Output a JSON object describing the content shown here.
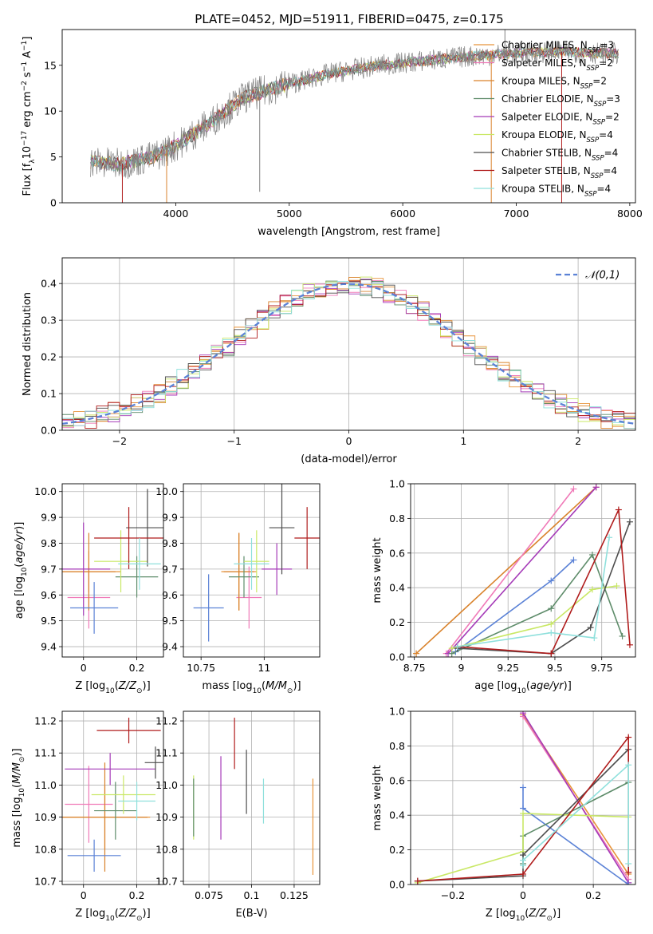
{
  "figure": {
    "title": "PLATE=0452, MJD=51911, FIBERID=0475, z=0.175"
  },
  "colors": {
    "models": [
      "#e8943a",
      "#f07ab8",
      "#d9822b",
      "#5e8c6a",
      "#a53ab8",
      "#c9e865",
      "#4d4d4d",
      "#b01c1c",
      "#8fe0dc"
    ],
    "gauss": "#5b82d6",
    "data": "#808080"
  },
  "chart_data": [
    {
      "panel": "spectrum",
      "type": "line",
      "xlabel": "wavelength [Angstrom, rest frame]",
      "ylabel": "Flux [f_λ10^-17 erg cm^-2 s^-1 A^-1]",
      "xlim": [
        3000,
        8050
      ],
      "ylim": [
        0,
        18.9
      ],
      "xticks": [
        4000,
        5000,
        6000,
        7000,
        8000
      ],
      "yticks": [
        0,
        5,
        10,
        15
      ],
      "legend": [
        {
          "base": "Chabrier MILES, N",
          "sub": "SSP",
          "tail": "=3"
        },
        {
          "base": "Salpeter MILES, N",
          "sub": "SSP",
          "tail": "=2"
        },
        {
          "base": "Kroupa MILES, N",
          "sub": "SSP",
          "tail": "=2"
        },
        {
          "base": "Chabrier ELODIE, N",
          "sub": "SSP",
          "tail": "=3"
        },
        {
          "base": "Salpeter ELODIE, N",
          "sub": "SSP",
          "tail": "=2"
        },
        {
          "base": "Kroupa ELODIE, N",
          "sub": "SSP",
          "tail": "=4"
        },
        {
          "base": "Chabrier STELIB, N",
          "sub": "SSP",
          "tail": "=4"
        },
        {
          "base": "Salpeter STELIB, N",
          "sub": "SSP",
          "tail": "=4"
        },
        {
          "base": "Kroupa STELIB, N",
          "sub": "SSP",
          "tail": "=4"
        }
      ],
      "legend_position": "upper right",
      "approx_trend": {
        "x": [
          3250,
          3500,
          3800,
          4000,
          4300,
          4600,
          5000,
          5400,
          5800,
          6200,
          6600,
          7000,
          7400,
          7800
        ],
        "y": [
          4.5,
          4.2,
          5.0,
          6.2,
          8.7,
          11.5,
          13.0,
          14.2,
          15.0,
          15.5,
          16.0,
          16.3,
          16.5,
          16.3
        ]
      },
      "spikes": [
        {
          "x": 3530,
          "y": 0
        },
        {
          "x": 3920,
          "y": 0
        },
        {
          "x": 4740,
          "y": 1.2
        },
        {
          "x": 6780,
          "y": 0
        },
        {
          "x": 7400,
          "y": 0
        },
        {
          "x": 6900,
          "y": 18.9
        }
      ]
    },
    {
      "panel": "residuals",
      "type": "step",
      "xlabel": "(data-model)/error",
      "ylabel": "Normed distribution",
      "xlim": [
        -2.5,
        2.5
      ],
      "ylim": [
        0,
        0.47
      ],
      "xticks": [
        -2,
        -1,
        0,
        1,
        2
      ],
      "yticks": [
        0.0,
        0.1,
        0.2,
        0.3,
        0.4
      ],
      "grid": true,
      "legend": "𝒩(0,1)",
      "legend_position": "upper right",
      "bin_edges": [
        -2.5,
        2.5
      ],
      "n_bins": 50,
      "histograms_approx": "nine model histograms around the Gaussian"
    },
    {
      "panel": "age_vs_Z",
      "type": "errorbar",
      "xlabel": "Z [log10(Z/Z⊙)]",
      "ylabel": "age  [log10(age/yr)]",
      "xlim": [
        -0.08,
        0.3
      ],
      "ylim": [
        9.36,
        10.03
      ],
      "xticks": [
        0.0,
        0.2
      ],
      "yticks": [
        9.4,
        9.5,
        9.6,
        9.7,
        9.8,
        9.9,
        10.0
      ],
      "points": [
        {
          "x": 0.02,
          "y": 9.69,
          "xerr": 0.12,
          "yerr": 0.08,
          "c": 0
        },
        {
          "x": 0.02,
          "y": 9.59,
          "xerr": 0.08,
          "yerr": 0.12,
          "c": 1
        },
        {
          "x": 0.02,
          "y": 9.69,
          "xerr": 0.1,
          "yerr": 0.15,
          "c": 2
        },
        {
          "x": 0.2,
          "y": 9.67,
          "xerr": 0.08,
          "yerr": 0.08,
          "c": 3
        },
        {
          "x": 0.0,
          "y": 9.7,
          "xerr": 0.1,
          "yerr": 0.18,
          "c": 4
        },
        {
          "x": 0.14,
          "y": 9.73,
          "xerr": 0.1,
          "yerr": 0.12,
          "c": 5
        },
        {
          "x": 0.24,
          "y": 9.86,
          "xerr": 0.08,
          "yerr": 0.15,
          "c": 6
        },
        {
          "x": 0.17,
          "y": 9.82,
          "xerr": 0.13,
          "yerr": 0.12,
          "c": 7
        },
        {
          "x": 0.21,
          "y": 9.72,
          "xerr": 0.08,
          "yerr": 0.1,
          "c": 8
        },
        {
          "x": 0.04,
          "y": 9.55,
          "xerr": 0.09,
          "yerr": 0.1,
          "c": "gauss"
        }
      ]
    },
    {
      "panel": "age_vs_mass",
      "type": "errorbar",
      "xlabel": "mass [log10(M/M⊙)]",
      "ylabel": "",
      "xlim": [
        10.68,
        11.22
      ],
      "ylim": [
        9.36,
        10.03
      ],
      "xticks": [
        10.75,
        11.0
      ],
      "yticks": [
        9.4,
        9.5,
        9.6,
        9.7,
        9.8,
        9.9,
        10.0
      ],
      "points": [
        {
          "x": 10.9,
          "y": 9.69,
          "xerr": 0.07,
          "yerr": 0.15,
          "c": 0
        },
        {
          "x": 10.94,
          "y": 9.59,
          "xerr": 0.05,
          "yerr": 0.12,
          "c": 1
        },
        {
          "x": 10.9,
          "y": 9.69,
          "xerr": 0.06,
          "yerr": 0.15,
          "c": 2
        },
        {
          "x": 10.92,
          "y": 9.67,
          "xerr": 0.06,
          "yerr": 0.08,
          "c": 3
        },
        {
          "x": 11.05,
          "y": 9.7,
          "xerr": 0.06,
          "yerr": 0.1,
          "c": 4
        },
        {
          "x": 10.97,
          "y": 9.73,
          "xerr": 0.05,
          "yerr": 0.12,
          "c": 5
        },
        {
          "x": 11.07,
          "y": 9.86,
          "xerr": 0.05,
          "yerr": 0.18,
          "c": 6
        },
        {
          "x": 11.17,
          "y": 9.82,
          "xerr": 0.05,
          "yerr": 0.12,
          "c": 7
        },
        {
          "x": 10.95,
          "y": 9.72,
          "xerr": 0.07,
          "yerr": 0.1,
          "c": 8
        },
        {
          "x": 10.78,
          "y": 9.55,
          "xerr": 0.06,
          "yerr": 0.13,
          "c": "gauss"
        }
      ]
    },
    {
      "panel": "weight_vs_age",
      "type": "line",
      "xlabel": "age  [log10(age/yr)]",
      "ylabel": "mass weight",
      "xlim": [
        8.73,
        9.93
      ],
      "ylim": [
        0,
        1
      ],
      "xticks": [
        8.75,
        9.0,
        9.25,
        9.5,
        9.75
      ],
      "yticks": [
        0.0,
        0.2,
        0.4,
        0.6,
        0.8,
        1.0
      ],
      "grid": true,
      "series": [
        {
          "c": 2,
          "x": [
            8.76,
            9.72
          ],
          "y": [
            0.02,
            0.98
          ]
        },
        {
          "c": 1,
          "x": [
            8.92,
            9.6
          ],
          "y": [
            0.02,
            0.97
          ]
        },
        {
          "c": 4,
          "x": [
            8.93,
            9.72
          ],
          "y": [
            0.02,
            0.98
          ]
        },
        {
          "c": "gauss",
          "x": [
            8.97,
            9.48,
            9.6
          ],
          "y": [
            0.03,
            0.44,
            0.56
          ]
        },
        {
          "c": 3,
          "x": [
            8.95,
            9.48,
            9.7,
            9.86
          ],
          "y": [
            0.02,
            0.28,
            0.59,
            0.12
          ]
        },
        {
          "c": 5,
          "x": [
            8.95,
            9.48,
            9.7,
            9.83
          ],
          "y": [
            0.05,
            0.19,
            0.39,
            0.41
          ]
        },
        {
          "c": 6,
          "x": [
            8.98,
            9.48,
            9.69,
            9.9
          ],
          "y": [
            0.05,
            0.02,
            0.17,
            0.78
          ]
        },
        {
          "c": 7,
          "x": [
            8.98,
            9.48,
            9.84,
            9.9
          ],
          "y": [
            0.06,
            0.02,
            0.85,
            0.07
          ]
        },
        {
          "c": 8,
          "x": [
            8.98,
            9.48,
            9.71,
            9.79
          ],
          "y": [
            0.06,
            0.14,
            0.11,
            0.69
          ]
        }
      ]
    },
    {
      "panel": "mass_vs_Z",
      "type": "errorbar",
      "xlabel": "Z [log10(Z/Z⊙)]",
      "ylabel": "mass [log10(M/M⊙)]",
      "xlim": [
        -0.08,
        0.3
      ],
      "ylim": [
        10.69,
        11.23
      ],
      "xticks": [
        0.0,
        0.2
      ],
      "yticks": [
        10.7,
        10.8,
        10.9,
        11.0,
        11.1,
        11.2
      ],
      "points": [
        {
          "x": 0.08,
          "y": 10.9,
          "xerr": 0.17,
          "yerr": 0.1,
          "c": 0
        },
        {
          "x": 0.02,
          "y": 10.94,
          "xerr": 0.09,
          "yerr": 0.12,
          "c": 1
        },
        {
          "x": 0.08,
          "y": 10.9,
          "xerr": 0.16,
          "yerr": 0.17,
          "c": 2
        },
        {
          "x": 0.12,
          "y": 10.92,
          "xerr": 0.08,
          "yerr": 0.09,
          "c": 3
        },
        {
          "x": 0.1,
          "y": 11.05,
          "xerr": 0.17,
          "yerr": 0.05,
          "c": 4
        },
        {
          "x": 0.15,
          "y": 10.97,
          "xerr": 0.12,
          "yerr": 0.06,
          "c": 5
        },
        {
          "x": 0.27,
          "y": 11.07,
          "xerr": 0.04,
          "yerr": 0.05,
          "c": 6
        },
        {
          "x": 0.17,
          "y": 11.17,
          "xerr": 0.12,
          "yerr": 0.04,
          "c": 7
        },
        {
          "x": 0.2,
          "y": 10.95,
          "xerr": 0.07,
          "yerr": 0.06,
          "c": 8
        },
        {
          "x": 0.04,
          "y": 10.78,
          "xerr": 0.1,
          "yerr": 0.05,
          "c": "gauss"
        }
      ]
    },
    {
      "panel": "mass_vs_EBV",
      "type": "errorbar",
      "xlabel": "E(B-V)",
      "ylabel": "",
      "xlim": [
        0.06,
        0.14
      ],
      "ylim": [
        10.69,
        11.23
      ],
      "xticks": [
        0.075,
        0.1,
        0.125
      ],
      "yticks": [
        10.7,
        10.8,
        10.9,
        11.0,
        11.1,
        11.2
      ],
      "points": [
        {
          "x": 0.066,
          "y": 10.93,
          "xerr": 0,
          "yerr": 0.1,
          "c": 5
        },
        {
          "x": 0.066,
          "y": 10.93,
          "xerr": 0,
          "yerr": 0.09,
          "c": 3
        },
        {
          "x": 0.082,
          "y": 10.96,
          "xerr": 0,
          "yerr": 0.13,
          "c": 4
        },
        {
          "x": 0.09,
          "y": 11.13,
          "xerr": 0,
          "yerr": 0.08,
          "c": 7
        },
        {
          "x": 0.097,
          "y": 11.01,
          "xerr": 0,
          "yerr": 0.1,
          "c": 6
        },
        {
          "x": 0.107,
          "y": 10.95,
          "xerr": 0,
          "yerr": 0.07,
          "c": 8
        },
        {
          "x": 0.136,
          "y": 10.87,
          "xerr": 0,
          "yerr": 0.15,
          "c": 0
        }
      ]
    },
    {
      "panel": "weight_vs_Z",
      "type": "line",
      "xlabel": "Z [log10(Z/Z⊙)]",
      "ylabel": "mass weight",
      "xlim": [
        -0.32,
        0.32
      ],
      "ylim": [
        0,
        1
      ],
      "xticks": [
        -0.2,
        0.0,
        0.2
      ],
      "yticks": [
        0.0,
        0.2,
        0.4,
        0.6,
        0.8,
        1.0
      ],
      "grid": true,
      "series": [
        {
          "c": 0,
          "x": [
            0.0,
            0.3
          ],
          "y": [
            0.98,
            0.06
          ]
        },
        {
          "c": 1,
          "x": [
            0.0,
            0.3
          ],
          "y": [
            0.97,
            0.03
          ]
        },
        {
          "c": 4,
          "x": [
            0.0,
            0.3
          ],
          "y": [
            0.99,
            0.01
          ]
        },
        {
          "c": "gauss",
          "x": [
            0.0,
            0.0,
            0.3
          ],
          "y": [
            0.56,
            0.44,
            0.0
          ]
        },
        {
          "c": 3,
          "x": [
            0.0,
            0.0,
            0.3
          ],
          "y": [
            0.12,
            0.28,
            0.59
          ]
        },
        {
          "c": 5,
          "x": [
            -0.3,
            0.0,
            0.0,
            0.3
          ],
          "y": [
            0.01,
            0.19,
            0.41,
            0.39
          ]
        },
        {
          "c": 6,
          "x": [
            -0.3,
            0.0,
            0.0,
            0.3
          ],
          "y": [
            0.02,
            0.05,
            0.17,
            0.78
          ]
        },
        {
          "c": 7,
          "x": [
            -0.3,
            0.0,
            0.3,
            0.3
          ],
          "y": [
            0.02,
            0.06,
            0.85,
            0.07
          ]
        },
        {
          "c": 8,
          "x": [
            0.0,
            0.0,
            0.3,
            0.3
          ],
          "y": [
            0.11,
            0.14,
            0.69,
            0.12
          ]
        }
      ]
    }
  ]
}
